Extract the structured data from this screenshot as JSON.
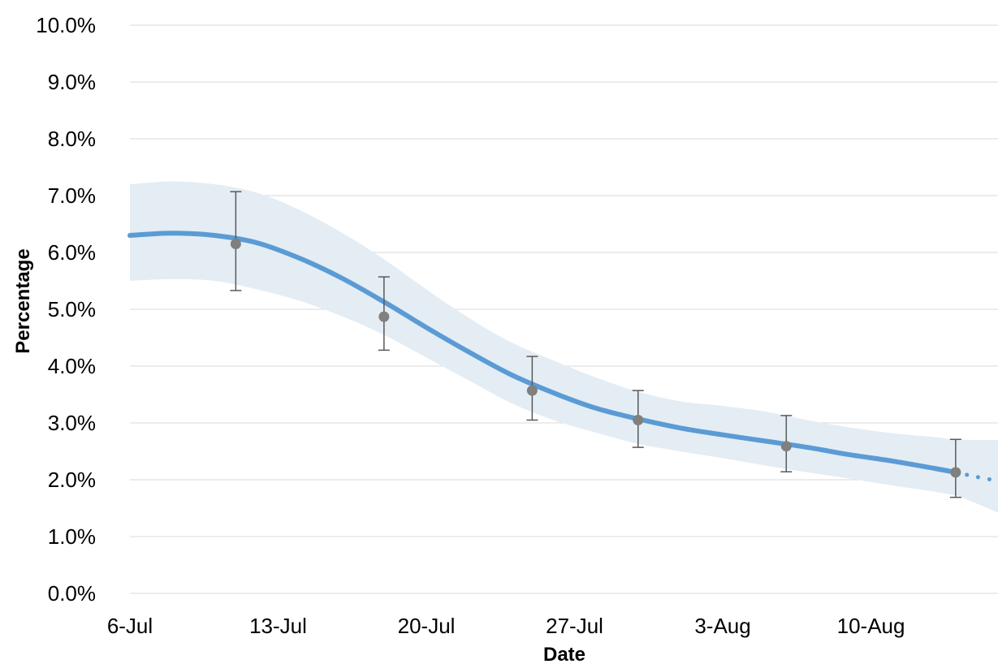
{
  "chart_data": {
    "type": "line",
    "xlabel": "Date",
    "ylabel": "Percentage",
    "ylim": [
      0,
      10
    ],
    "y_ticks": [
      "0.0%",
      "1.0%",
      "2.0%",
      "3.0%",
      "4.0%",
      "5.0%",
      "6.0%",
      "7.0%",
      "8.0%",
      "9.0%",
      "10.0%"
    ],
    "x_range": [
      "2020-07-06",
      "2020-08-16"
    ],
    "x_ticks": [
      {
        "date": "2020-07-06",
        "label": "6-Jul"
      },
      {
        "date": "2020-07-13",
        "label": "13-Jul"
      },
      {
        "date": "2020-07-20",
        "label": "20-Jul"
      },
      {
        "date": "2020-07-27",
        "label": "27-Jul"
      },
      {
        "date": "2020-08-03",
        "label": "3-Aug"
      },
      {
        "date": "2020-08-10",
        "label": "10-Aug"
      }
    ],
    "grid": true,
    "legend": "none",
    "colors": {
      "line": "#5b9bd5",
      "band": "#e4edf4",
      "points": "#808080",
      "error_bars": "#595959",
      "grid": "#d9d9d9"
    },
    "modelled_estimate": {
      "line_style": "solid",
      "x": [
        "2020-07-06",
        "2020-07-08",
        "2020-07-10",
        "2020-07-12",
        "2020-07-14",
        "2020-07-16",
        "2020-07-18",
        "2020-07-20",
        "2020-07-22",
        "2020-07-24",
        "2020-07-26",
        "2020-07-28",
        "2020-07-30",
        "2020-08-01",
        "2020-08-03",
        "2020-08-05",
        "2020-08-07",
        "2020-08-09",
        "2020-08-11",
        "2020-08-13",
        "2020-08-14"
      ],
      "y": [
        6.3,
        6.34,
        6.3,
        6.17,
        5.9,
        5.55,
        5.13,
        4.68,
        4.25,
        3.85,
        3.53,
        3.26,
        3.07,
        2.91,
        2.79,
        2.68,
        2.57,
        2.44,
        2.33,
        2.2,
        2.13
      ],
      "ci_lower": [
        5.5,
        5.53,
        5.5,
        5.35,
        5.15,
        4.88,
        4.55,
        4.15,
        3.75,
        3.35,
        3.05,
        2.83,
        2.63,
        2.5,
        2.38,
        2.25,
        2.13,
        2.02,
        1.9,
        1.79,
        1.72
      ],
      "ci_upper": [
        7.2,
        7.25,
        7.2,
        7.05,
        6.75,
        6.35,
        5.88,
        5.35,
        4.85,
        4.42,
        4.1,
        3.8,
        3.55,
        3.38,
        3.3,
        3.2,
        3.05,
        2.92,
        2.82,
        2.75,
        2.71
      ]
    },
    "projection": {
      "line_style": "dotted",
      "x": [
        "2020-08-14",
        "2020-08-15",
        "2020-08-16"
      ],
      "y": [
        2.13,
        2.05,
        1.98
      ],
      "ci_lower": [
        1.72,
        1.58,
        1.42
      ],
      "ci_upper": [
        2.71,
        2.7,
        2.7
      ]
    },
    "points": [
      {
        "x": "2020-07-11",
        "y": 6.15,
        "lower": 5.33,
        "upper": 7.07
      },
      {
        "x": "2020-07-18",
        "y": 4.87,
        "lower": 4.28,
        "upper": 5.57
      },
      {
        "x": "2020-07-25",
        "y": 3.57,
        "lower": 3.05,
        "upper": 4.17
      },
      {
        "x": "2020-07-30",
        "y": 3.05,
        "lower": 2.57,
        "upper": 3.57
      },
      {
        "x": "2020-08-06",
        "y": 2.59,
        "lower": 2.14,
        "upper": 3.13
      },
      {
        "x": "2020-08-14",
        "y": 2.13,
        "lower": 1.69,
        "upper": 2.71
      }
    ]
  }
}
